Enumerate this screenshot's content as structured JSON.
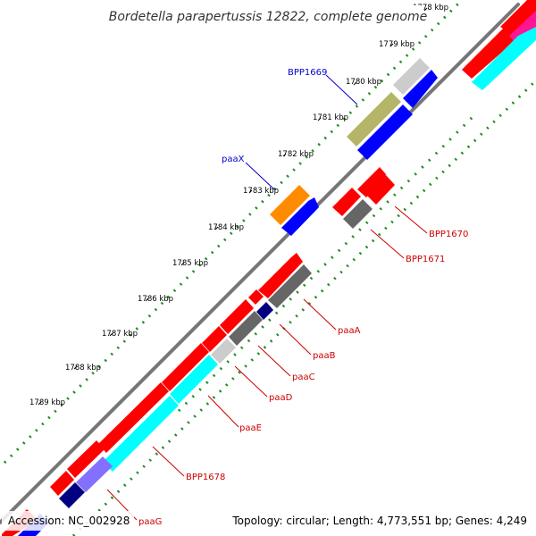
{
  "title": "Bordetella parapertussis 12822, complete genome",
  "footer": {
    "accession": "Accession: NC_002928",
    "summary": "Topology: circular; Length: 4,773,551 bp; Genes: 4,249"
  },
  "ticks": [
    "1778 kbp",
    "1779 kbp",
    "1780 kbp",
    "1781 kbp",
    "1782 kbp",
    "1783 kbp",
    "1784 kbp",
    "1785 kbp",
    "1786 kbp",
    "1787 kbp",
    "1788 kbp",
    "1789 kbp"
  ],
  "gene_labels": [
    "BPP1669",
    "paaX",
    "BPP1670",
    "BPP1671",
    "paaA",
    "paaB",
    "paaC",
    "paaD",
    "paaE",
    "BPP1678",
    "paaG"
  ],
  "colors": {
    "red": "#ff0000",
    "blue": "#0000ff",
    "navy": "#000080",
    "cyan": "#00ffff",
    "gray": "#666666",
    "lightgray": "#cccccc",
    "olive": "#b5b56a",
    "orange": "#ff8c00",
    "purple": "#8470ff",
    "magenta": "#ff1493",
    "backbone": "#777777",
    "dots": "#228b22",
    "label_blue": "#0000cc",
    "label_red": "#cc0000"
  }
}
